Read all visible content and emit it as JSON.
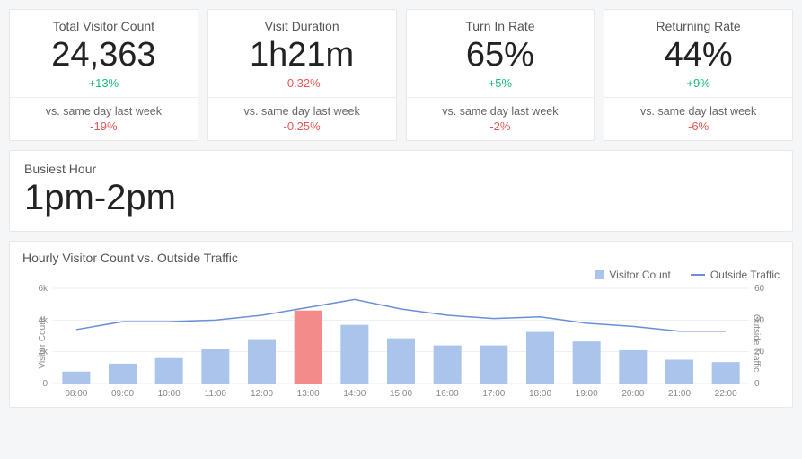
{
  "kpis": [
    {
      "title": "Total Visitor Count",
      "value": "24,363",
      "delta1": "+13%",
      "delta1_pos": true,
      "compare": "vs. same day last week",
      "delta2": "-19%",
      "delta2_pos": false
    },
    {
      "title": "Visit Duration",
      "value": "1h21m",
      "delta1": "-0.32%",
      "delta1_pos": false,
      "compare": "vs. same day last week",
      "delta2": "-0.25%",
      "delta2_pos": false
    },
    {
      "title": "Turn In Rate",
      "value": "65%",
      "delta1": "+5%",
      "delta1_pos": true,
      "compare": "vs. same day last week",
      "delta2": "-2%",
      "delta2_pos": false
    },
    {
      "title": "Returning Rate",
      "value": "44%",
      "delta1": "+9%",
      "delta1_pos": true,
      "compare": "vs. same day last week",
      "delta2": "-6%",
      "delta2_pos": false
    }
  ],
  "busiest": {
    "title": "Busiest Hour",
    "value": "1pm-2pm"
  },
  "chart": {
    "title": "Hourly Visitor Count vs. Outside Traffic",
    "legend": {
      "bar": "Visitor Count",
      "line": "Outside Traffic"
    },
    "type": "bar+line",
    "categories": [
      "08:00",
      "09:00",
      "10:00",
      "11:00",
      "12:00",
      "13:00",
      "14:00",
      "15:00",
      "16:00",
      "17:00",
      "18:00",
      "19:00",
      "20:00",
      "21:00",
      "22:00"
    ],
    "bar_values": [
      750,
      1250,
      1600,
      2200,
      2800,
      4600,
      3700,
      2850,
      2400,
      2400,
      3250,
      2650,
      2100,
      1500,
      1350
    ],
    "line_values": [
      34,
      39,
      39,
      40,
      43,
      48,
      53,
      47,
      43,
      41,
      42,
      38,
      36,
      33,
      33
    ],
    "highlight_index": 5,
    "bar_color": "#aac4ec",
    "bar_highlight_color": "#f28b89",
    "line_color": "#6a8fd8",
    "y_left": {
      "min": 0,
      "max": 6000,
      "ticks": [
        0,
        2000,
        4000,
        6000
      ],
      "tick_labels": [
        "0",
        "2k",
        "4k",
        "6k"
      ],
      "label": "Visitor Count"
    },
    "y_right": {
      "min": 0,
      "max": 60,
      "ticks": [
        0,
        20,
        40,
        60
      ],
      "tick_labels": [
        "0",
        "20",
        "40",
        "60"
      ],
      "label": "Outside Traffic"
    },
    "grid_color": "#eceff3",
    "axis_text_color": "#888888",
    "background_color": "#ffffff",
    "bar_width_ratio": 0.6,
    "axis_fontsize": 10,
    "title_fontsize": 14
  },
  "colors": {
    "positive": "#1db97a",
    "negative": "#e25856"
  }
}
